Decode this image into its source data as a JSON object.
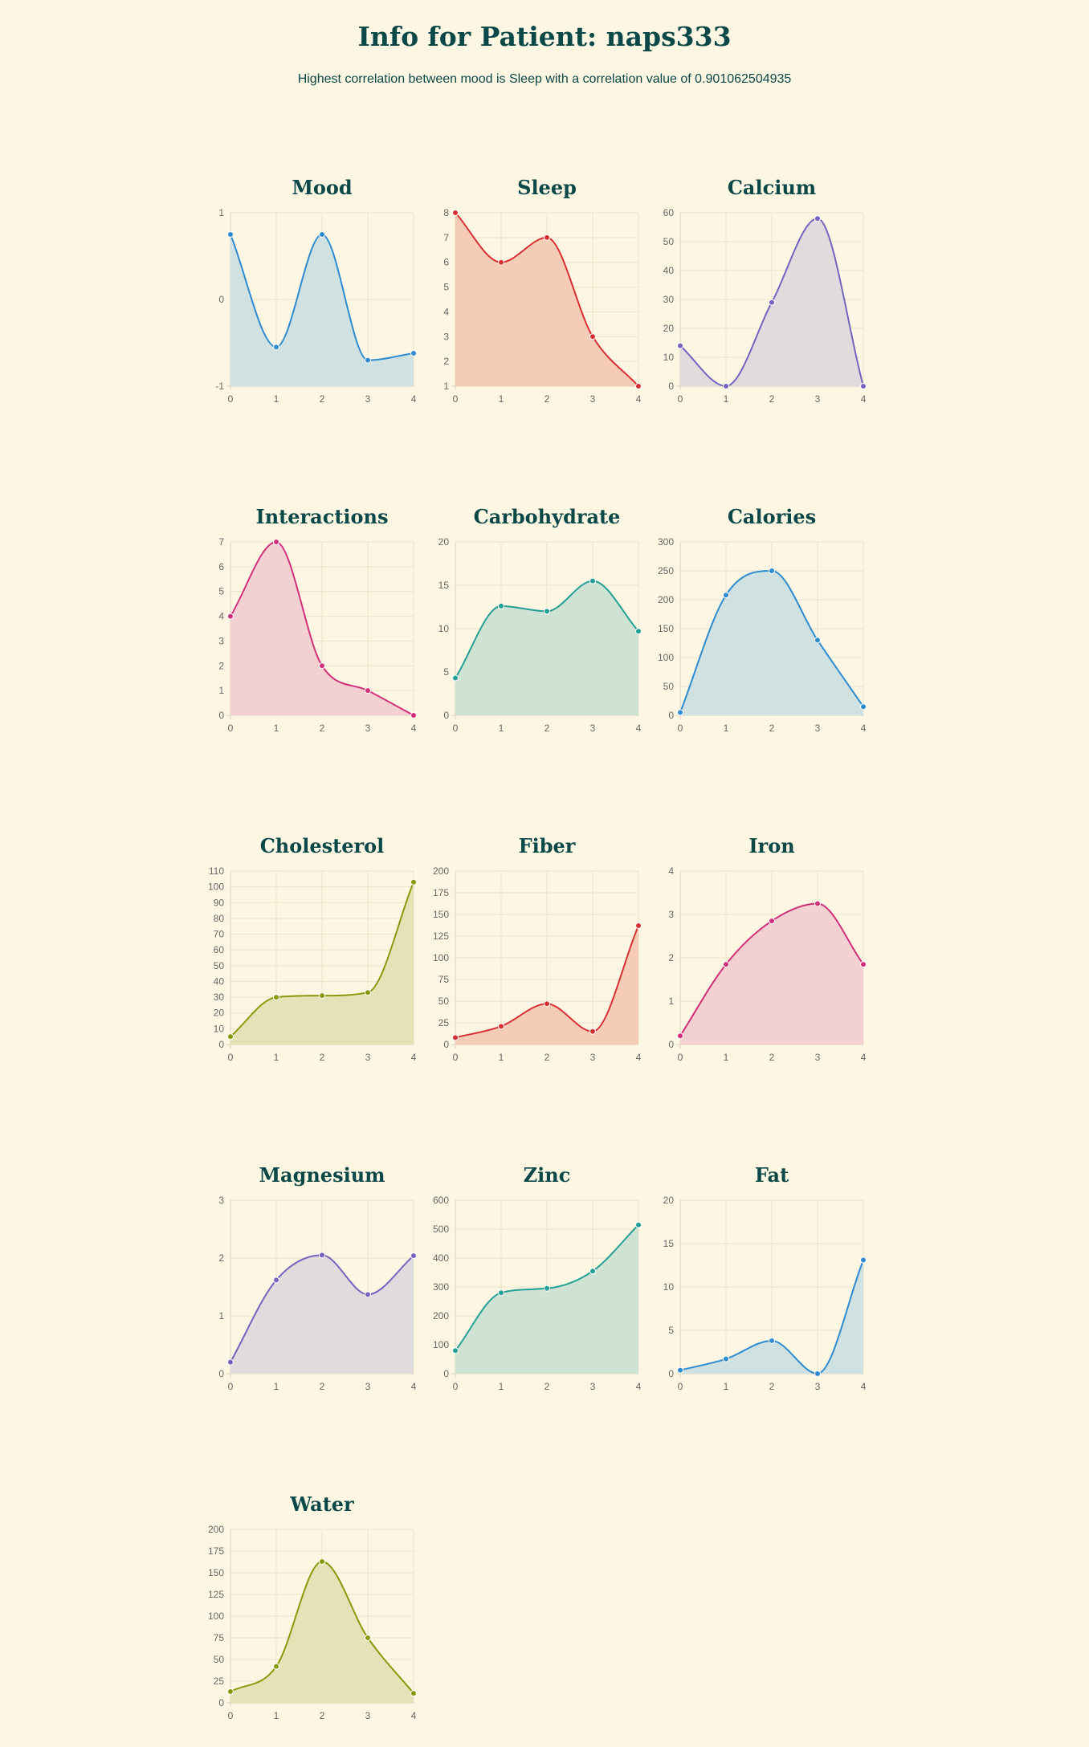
{
  "page": {
    "title": "Info for Patient: naps333",
    "subtitle": "Highest correlation between mood is Sleep with a correlation value of 0.901062504935"
  },
  "chart_data": [
    {
      "type": "area",
      "title": "Mood",
      "categories": [
        "0",
        "1",
        "2",
        "3",
        "4"
      ],
      "values": [
        0.75,
        -0.55,
        0.75,
        -0.7,
        -0.62
      ],
      "ylim": [
        -1,
        1
      ],
      "yticks": [
        -1,
        0,
        1
      ],
      "ytick_labels": [
        "-1",
        "0",
        "1"
      ],
      "color": "#2e8bd0",
      "fill": "#cfe1e0"
    },
    {
      "type": "area",
      "title": "Sleep",
      "categories": [
        "0",
        "1",
        "2",
        "3",
        "4"
      ],
      "values": [
        8,
        6,
        7,
        3,
        1
      ],
      "ylim": [
        1,
        8
      ],
      "yticks": [
        1,
        2,
        3,
        4,
        5,
        6,
        7,
        8
      ],
      "color": "#d62f34",
      "fill": "#f5cdb6"
    },
    {
      "type": "area",
      "title": "Calcium",
      "categories": [
        "0",
        "1",
        "2",
        "3",
        "4"
      ],
      "values": [
        14,
        0,
        29,
        58,
        0
      ],
      "ylim": [
        0,
        60
      ],
      "yticks": [
        0,
        10,
        20,
        30,
        40,
        50,
        60
      ],
      "color": "#7464c0",
      "fill": "#e0dbdc"
    },
    {
      "type": "area",
      "title": "Interactions",
      "categories": [
        "0",
        "1",
        "2",
        "3",
        "4"
      ],
      "values": [
        4,
        7,
        2,
        1,
        0
      ],
      "ylim": [
        0,
        7
      ],
      "yticks": [
        0,
        1,
        2,
        3,
        4,
        5,
        6,
        7
      ],
      "color": "#d0307a",
      "fill": "#f3d0d2"
    },
    {
      "type": "area",
      "title": "Carbohydrate",
      "categories": [
        "0",
        "1",
        "2",
        "3",
        "4"
      ],
      "values": [
        4.3,
        12.6,
        12.0,
        15.5,
        9.7
      ],
      "ylim": [
        0,
        20
      ],
      "yticks": [
        0,
        5,
        10,
        15,
        20
      ],
      "color": "#22a094",
      "fill": "#cfe3d4"
    },
    {
      "type": "area",
      "title": "Calories",
      "categories": [
        "0",
        "1",
        "2",
        "3",
        "4"
      ],
      "values": [
        5,
        208,
        250,
        130,
        15
      ],
      "ylim": [
        0,
        300
      ],
      "yticks": [
        0,
        50,
        100,
        150,
        200,
        250,
        300
      ],
      "color": "#2e8bd0",
      "fill": "#cfe1e0"
    },
    {
      "type": "area",
      "title": "Cholesterol",
      "categories": [
        "0",
        "1",
        "2",
        "3",
        "4"
      ],
      "values": [
        5,
        30,
        31,
        33,
        103
      ],
      "ylim": [
        0,
        110
      ],
      "yticks": [
        0,
        10,
        20,
        30,
        40,
        50,
        60,
        70,
        80,
        90,
        100,
        110
      ],
      "color": "#879a0c",
      "fill": "#e6e2b8"
    },
    {
      "type": "area",
      "title": "Fiber",
      "categories": [
        "0",
        "1",
        "2",
        "3",
        "4"
      ],
      "values": [
        8,
        21,
        47,
        15,
        137
      ],
      "ylim": [
        0,
        200
      ],
      "yticks": [
        0,
        25,
        50,
        75,
        100,
        125,
        150,
        175,
        200
      ],
      "color": "#d62f34",
      "fill": "#f5cdb6"
    },
    {
      "type": "area",
      "title": "Iron",
      "categories": [
        "0",
        "1",
        "2",
        "3",
        "4"
      ],
      "values": [
        0.2,
        1.85,
        2.85,
        3.25,
        1.85
      ],
      "ylim": [
        0,
        4
      ],
      "yticks": [
        0,
        1,
        2,
        3,
        4
      ],
      "color": "#d0307a",
      "fill": "#f3d0d2"
    },
    {
      "type": "area",
      "title": "Magnesium",
      "categories": [
        "0",
        "1",
        "2",
        "3",
        "4"
      ],
      "values": [
        0.2,
        1.62,
        2.05,
        1.37,
        2.04
      ],
      "ylim": [
        0,
        3
      ],
      "yticks": [
        0,
        1,
        2,
        3
      ],
      "color": "#7464c0",
      "fill": "#e0dbdc"
    },
    {
      "type": "area",
      "title": "Zinc",
      "categories": [
        "0",
        "1",
        "2",
        "3",
        "4"
      ],
      "values": [
        80,
        280,
        295,
        355,
        515
      ],
      "ylim": [
        0,
        600
      ],
      "yticks": [
        0,
        100,
        200,
        300,
        400,
        500,
        600
      ],
      "color": "#22a094",
      "fill": "#cfe3d4"
    },
    {
      "type": "area",
      "title": "Fat",
      "categories": [
        "0",
        "1",
        "2",
        "3",
        "4"
      ],
      "values": [
        0.4,
        1.7,
        3.8,
        0,
        13.1
      ],
      "ylim": [
        0,
        20
      ],
      "yticks": [
        0,
        5,
        10,
        15,
        20
      ],
      "color": "#2e8bd0",
      "fill": "#cfe1e0"
    },
    {
      "type": "area",
      "title": "Water",
      "categories": [
        "0",
        "1",
        "2",
        "3",
        "4"
      ],
      "values": [
        13,
        42,
        163,
        75,
        11
      ],
      "ylim": [
        0,
        200
      ],
      "yticks": [
        0,
        25,
        50,
        75,
        100,
        125,
        150,
        175,
        200
      ],
      "color": "#879a0c",
      "fill": "#e6e2b8"
    }
  ]
}
